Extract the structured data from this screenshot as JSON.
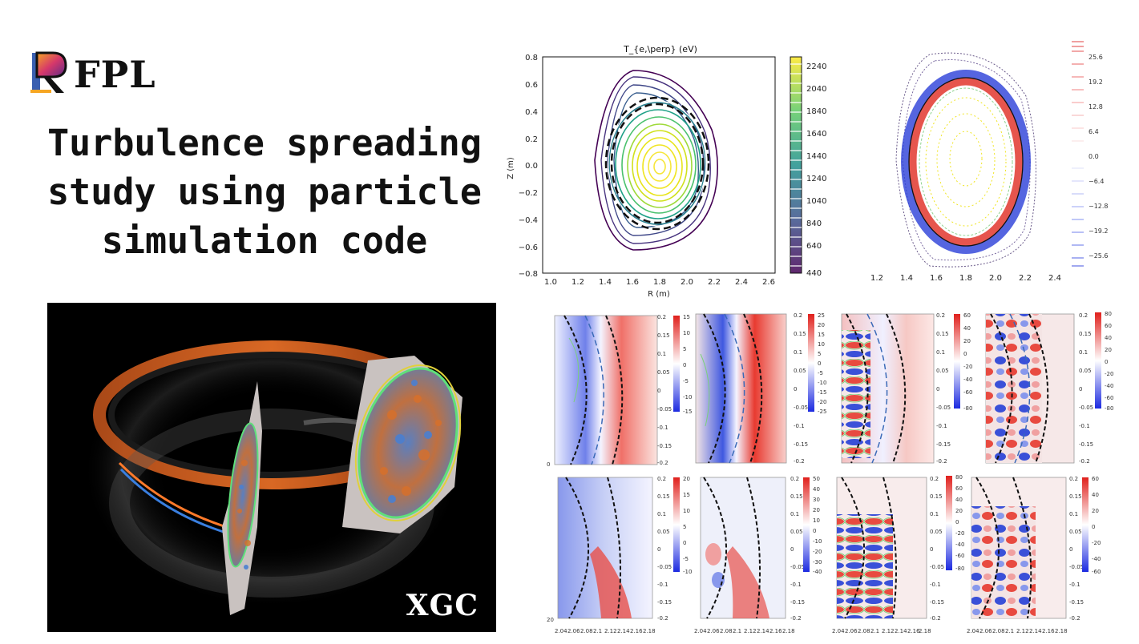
{
  "logo": {
    "text": "FPL"
  },
  "title": {
    "lines": [
      "Turbulence spreading",
      "study using particle",
      "simulation code"
    ]
  },
  "render": {
    "label": "XGC"
  },
  "contour": {
    "title": "T_{e,\\perp} (eV)",
    "xlabel": "R (m)",
    "ylabel": "Z (m)",
    "xticks": [
      "1.0",
      "1.2",
      "1.4",
      "1.6",
      "1.8",
      "2.0",
      "2.2",
      "2.4",
      "2.6"
    ],
    "yticks": [
      "0.8",
      "0.6",
      "0.4",
      "0.2",
      "0.0",
      "−0.2",
      "−0.4",
      "−0.6",
      "−0.8"
    ],
    "cbar_ticks": [
      "2240",
      "2040",
      "1840",
      "1640",
      "1440",
      "1240",
      "1040",
      "840",
      "640",
      "440"
    ]
  },
  "fluct": {
    "xticks": [
      "1.2",
      "1.4",
      "1.6",
      "1.8",
      "2.0",
      "2.2",
      "2.4"
    ],
    "cbar_ticks": [
      "25.6",
      "19.2",
      "12.8",
      "6.4",
      "0.0",
      "−6.4",
      "−12.8",
      "−19.2",
      "−25.6"
    ]
  },
  "grid": {
    "yticks": [
      "0.2",
      "0.15",
      "0.1",
      "0.05",
      "0",
      "-0.05",
      "-0.1",
      "-0.15",
      "-0.2"
    ],
    "xticks": [
      "2.04",
      "2.06",
      "2.08",
      "2.1",
      "2.12",
      "2.14",
      "2.16",
      "2.18"
    ],
    "top_cbars": [
      [
        "15",
        "10",
        "5",
        "0",
        "-5",
        "-10",
        "-15"
      ],
      [
        "25",
        "20",
        "15",
        "10",
        "5",
        "0",
        "-5",
        "-10",
        "-15",
        "-20",
        "-25"
      ],
      [
        "60",
        "40",
        "20",
        "0",
        "-20",
        "-40",
        "-60",
        "-80"
      ],
      [
        "80",
        "60",
        "40",
        "20",
        "0",
        "-20",
        "-40",
        "-60",
        "-80"
      ]
    ],
    "bottom_cbars": [
      [
        "20",
        "15",
        "10",
        "5",
        "0",
        "-5",
        "-10"
      ],
      [
        "50",
        "40",
        "30",
        "20",
        "10",
        "0",
        "-10",
        "-20",
        "-30",
        "-40"
      ],
      [
        "80",
        "60",
        "40",
        "20",
        "0",
        "-20",
        "-40",
        "-60",
        "-80"
      ],
      [
        "60",
        "40",
        "20",
        "0",
        "-20",
        "-40",
        "-60"
      ]
    ],
    "row_markers": [
      "0",
      "20"
    ]
  },
  "colors": {
    "red": "#e8261f",
    "blue": "#1f3fe8",
    "viridis_yellow": "#f0e524",
    "viridis_purple": "#440154"
  }
}
